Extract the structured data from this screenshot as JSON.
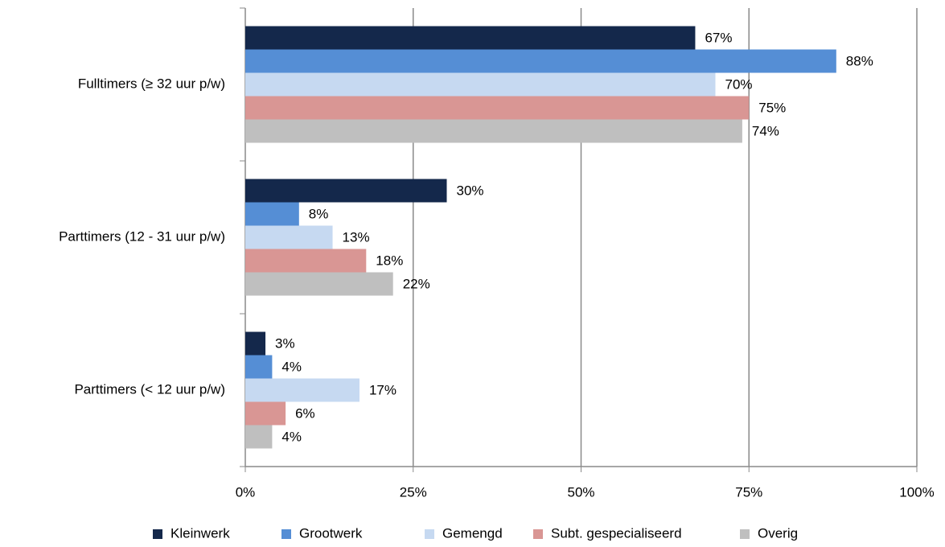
{
  "chart_data": {
    "type": "bar",
    "orientation": "horizontal",
    "categories": [
      "Fulltimers (≥ 32 uur p/w)",
      "Parttimers (12 - 31 uur p/w)",
      "Parttimers (< 12 uur p/w)"
    ],
    "series": [
      {
        "name": "Kleinwerk",
        "color": "#14284b",
        "values": [
          67,
          30,
          3
        ],
        "value_labels": [
          "67%",
          "30%",
          "3%"
        ]
      },
      {
        "name": "Grootwerk",
        "color": "#558ed5",
        "values": [
          88,
          8,
          4
        ],
        "value_labels": [
          "88%",
          "8%",
          "4%"
        ]
      },
      {
        "name": "Gemengd",
        "color": "#c6d9f1",
        "values": [
          70,
          13,
          17
        ],
        "value_labels": [
          "70%",
          "13%",
          "17%"
        ]
      },
      {
        "name": "Subt. gespecialiseerd",
        "color": "#d99694",
        "values": [
          75,
          18,
          6
        ],
        "value_labels": [
          "75%",
          "18%",
          "6%"
        ]
      },
      {
        "name": "Overig",
        "color": "#bfbfbf",
        "values": [
          74,
          22,
          4
        ],
        "value_labels": [
          "74%",
          "22%",
          "4%"
        ]
      }
    ],
    "xlim": [
      0,
      100
    ],
    "xticks": [
      {
        "value": 0,
        "label": "0%"
      },
      {
        "value": 25,
        "label": "25%"
      },
      {
        "value": 50,
        "label": "50%"
      },
      {
        "value": 75,
        "label": "75%"
      },
      {
        "value": 100,
        "label": "100%"
      }
    ],
    "grid": true,
    "legend": "bottom"
  }
}
